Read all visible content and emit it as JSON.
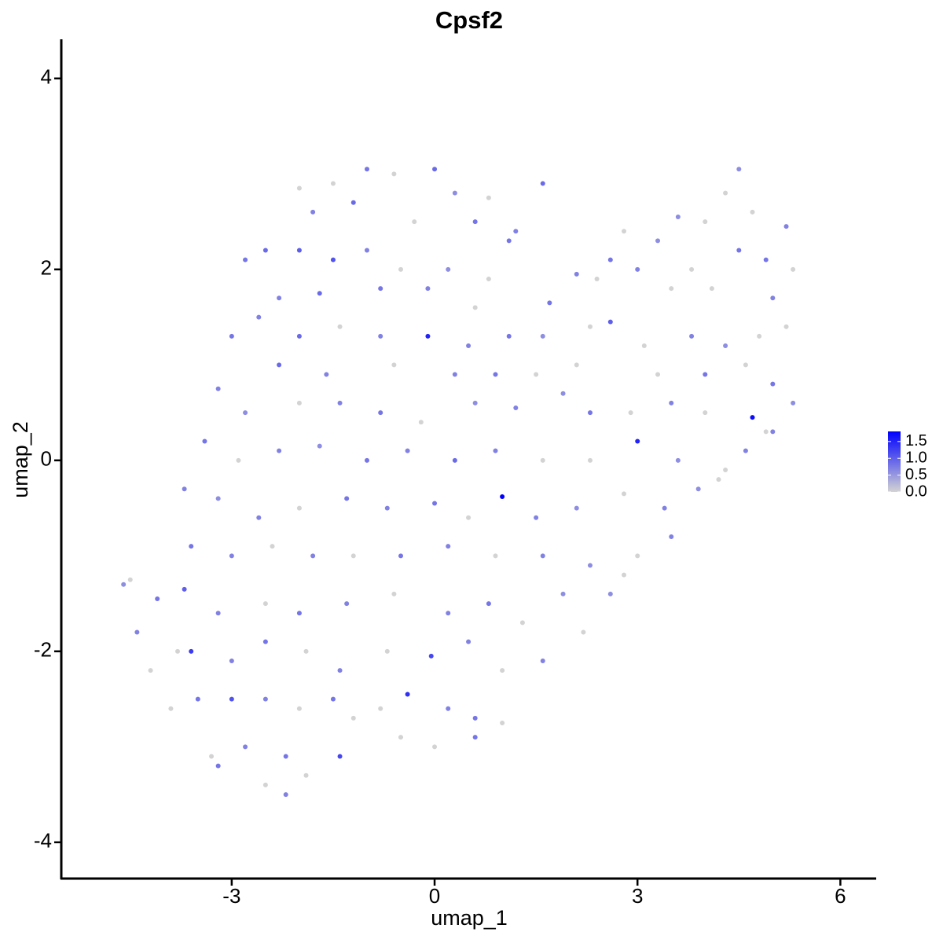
{
  "chart_data": {
    "type": "scatter",
    "title": "Cpsf2",
    "xlabel": "umap_1",
    "ylabel": "umap_2",
    "xlim": [
      -5.52,
      6.53
    ],
    "ylim": [
      -4.38,
      4.41
    ],
    "xticks": [
      -3,
      0,
      3,
      6
    ],
    "yticks": [
      -4,
      -2,
      0,
      2,
      4
    ],
    "colorbar": {
      "low": "#d3d3d3",
      "high": "#0000ff",
      "lim": [
        0,
        1.8
      ],
      "ticks": [
        {
          "value": 0,
          "label": "0.0"
        },
        {
          "value": 0.5,
          "label": "0.5"
        },
        {
          "value": 1,
          "label": "1.0"
        },
        {
          "value": 1.5,
          "label": "1.5"
        }
      ]
    },
    "x": [
      -1.5,
      -1.0,
      -0.6,
      0,
      0.3,
      0.8,
      1.6,
      -2.0,
      -1.8,
      -1.2,
      -0.3,
      0.6,
      1.2,
      -2.8,
      -2.5,
      -2.0,
      -1.5,
      -1.0,
      -0.5,
      0.2,
      0.8,
      1.1,
      -2.3,
      -1.7,
      -0.8,
      -0.1,
      0.6,
      4.5,
      4.3,
      4.7,
      5.2,
      3.6,
      2.8,
      4.0,
      5.3,
      4.9,
      3.3,
      2.1,
      2.6,
      3.8,
      4.5,
      1.7,
      2.4,
      3.0,
      3.5,
      4.1,
      5.0,
      -3.0,
      -2.6,
      -2.0,
      -1.4,
      -0.8,
      -0.1,
      0.5,
      1.1,
      1.6,
      2.3,
      2.6,
      3.1,
      3.8,
      4.3,
      4.8,
      5.2,
      -2.3,
      -1.6,
      -0.6,
      0.3,
      0.9,
      1.5,
      2.1,
      3.3,
      4.0,
      4.6,
      5.0,
      -3.2,
      -2.8,
      -2.0,
      -1.4,
      -0.8,
      -0.2,
      0.6,
      1.2,
      1.9,
      2.3,
      2.9,
      3.5,
      4.0,
      4.7,
      5.3,
      4.9,
      -3.4,
      -2.9,
      -2.3,
      -1.7,
      -1.0,
      -0.4,
      0.3,
      0.9,
      1.6,
      2.3,
      3.0,
      3.6,
      4.3,
      4.6,
      5.0,
      -3.7,
      -3.2,
      -2.6,
      -2.0,
      -1.3,
      -0.7,
      0,
      1.0,
      0.5,
      1.5,
      2.1,
      2.8,
      3.4,
      3.9,
      4.2,
      -4.5,
      -4.6,
      -3.6,
      -3.0,
      -2.4,
      -1.8,
      -1.2,
      -0.5,
      0.2,
      0.9,
      1.6,
      2.3,
      3.0,
      3.5,
      2.6,
      2.8,
      -4.1,
      -3.7,
      -3.2,
      -2.5,
      -2.0,
      -1.3,
      -0.6,
      0.2,
      0.8,
      1.3,
      1.9,
      2.2,
      -4.4,
      -3.8,
      -3.6,
      -3.0,
      -2.5,
      -1.9,
      -1.4,
      -0.7,
      -0.05,
      0.5,
      1.0,
      1.6,
      -4.2,
      -3.9,
      -3.5,
      -3.0,
      -2.5,
      -2.0,
      -1.5,
      -0.8,
      -0.4,
      0.2,
      0.6,
      1.0,
      -1.2,
      -3.3,
      -2.8,
      -2.2,
      -1.4,
      -0.5,
      0,
      0.6,
      -2.5,
      -2.2,
      -1.9,
      -3.2
    ],
    "y": [
      2.9,
      3.05,
      3.0,
      3.05,
      2.8,
      2.75,
      2.9,
      2.85,
      2.6,
      2.7,
      2.5,
      2.5,
      2.4,
      2.1,
      2.2,
      2.2,
      2.1,
      2.2,
      2.0,
      2.0,
      1.9,
      2.3,
      1.7,
      1.75,
      1.8,
      1.8,
      1.6,
      3.05,
      2.8,
      2.6,
      2.45,
      2.55,
      2.4,
      2.5,
      2.0,
      2.1,
      2.3,
      1.95,
      2.1,
      2.0,
      2.2,
      1.65,
      1.9,
      2.0,
      1.8,
      1.8,
      1.7,
      1.3,
      1.5,
      1.3,
      1.4,
      1.3,
      1.3,
      1.2,
      1.3,
      1.3,
      1.4,
      1.45,
      1.2,
      1.3,
      1.2,
      1.3,
      1.4,
      1.0,
      0.9,
      1.0,
      0.9,
      0.9,
      0.9,
      1.0,
      0.9,
      0.9,
      1.0,
      0.8,
      0.75,
      0.5,
      0.6,
      0.6,
      0.5,
      0.4,
      0.6,
      0.55,
      0.7,
      0.5,
      0.5,
      0.6,
      0.5,
      0.45,
      0.6,
      0.3,
      0.2,
      0.0,
      0.1,
      0.15,
      0.0,
      0.1,
      0.0,
      0.1,
      0.0,
      0.0,
      0.2,
      0.0,
      -0.1,
      0.1,
      0.3,
      -0.3,
      -0.4,
      -0.6,
      -0.5,
      -0.4,
      -0.5,
      -0.45,
      -0.38,
      -0.6,
      -0.6,
      -0.5,
      -0.35,
      -0.5,
      -0.3,
      -0.2,
      -1.25,
      -1.3,
      -0.9,
      -1.0,
      -0.9,
      -1.0,
      -1.0,
      -1.0,
      -0.9,
      -1.0,
      -1.0,
      -1.1,
      -1.0,
      -0.8,
      -1.4,
      -1.2,
      -1.45,
      -1.35,
      -1.6,
      -1.5,
      -1.6,
      -1.5,
      -1.4,
      -1.6,
      -1.5,
      -1.7,
      -1.4,
      -1.8,
      -1.8,
      -2.0,
      -2.0,
      -2.1,
      -1.9,
      -2.0,
      -2.2,
      -2.0,
      -2.05,
      -1.9,
      -2.2,
      -2.1,
      -2.2,
      -2.6,
      -2.5,
      -2.5,
      -2.5,
      -2.6,
      -2.5,
      -2.6,
      -2.45,
      -2.6,
      -2.7,
      -2.75,
      -2.7,
      -3.1,
      -3.0,
      -3.1,
      -3.1,
      -2.9,
      -3.0,
      -2.9,
      -3.4,
      -3.5,
      -3.3,
      -3.2
    ],
    "values": [
      0,
      0.8,
      0,
      0.9,
      0.6,
      0,
      0.9,
      0,
      0.7,
      0.9,
      0,
      0.8,
      0.7,
      0.8,
      0.9,
      1.0,
      1.1,
      0.7,
      0,
      0.6,
      0,
      0.8,
      0.7,
      0.9,
      0.8,
      0.7,
      0,
      0.6,
      0,
      0,
      0.7,
      0.6,
      0,
      0,
      0,
      0.8,
      0.6,
      0.7,
      0.8,
      0,
      0.8,
      0.8,
      0,
      0.7,
      0,
      0,
      0.7,
      0.8,
      0.7,
      0.9,
      0,
      0.7,
      1.5,
      0.7,
      0.8,
      0.6,
      0,
      1.0,
      0,
      0.7,
      0.6,
      0,
      0,
      0.9,
      0.7,
      0,
      0.7,
      0.8,
      0,
      0,
      0,
      0.8,
      0,
      0.8,
      0.7,
      0.6,
      0,
      0.7,
      0.8,
      0,
      0.6,
      0.7,
      0.6,
      0.8,
      0,
      0.7,
      0,
      1.7,
      0.6,
      0,
      0.8,
      0,
      0.7,
      0.6,
      0.8,
      0.7,
      0.9,
      0.7,
      0,
      0,
      1.5,
      0.6,
      0,
      0.7,
      0.7,
      0.7,
      0.6,
      0.7,
      0,
      0.8,
      0.7,
      0.8,
      1.8,
      0,
      0.7,
      0.6,
      0,
      0.7,
      0.6,
      0,
      0,
      0.6,
      0.8,
      0.7,
      0,
      0.7,
      0,
      0.8,
      0.7,
      0,
      0.7,
      0.6,
      0,
      0.7,
      0.6,
      0,
      0.8,
      1.0,
      0.7,
      0,
      0.8,
      0.7,
      0,
      0.7,
      0.8,
      0,
      0.6,
      0,
      0.7,
      0,
      1.3,
      0.7,
      0.8,
      0,
      0.7,
      0,
      1.2,
      0.7,
      0,
      0.7,
      0,
      0,
      0.8,
      1.1,
      0.7,
      0,
      0.8,
      0,
      1.4,
      0.7,
      0.8,
      0,
      0,
      0,
      0.7,
      0.8,
      1.2,
      0,
      0,
      0.8,
      0,
      0.7,
      0,
      0.8
    ]
  }
}
